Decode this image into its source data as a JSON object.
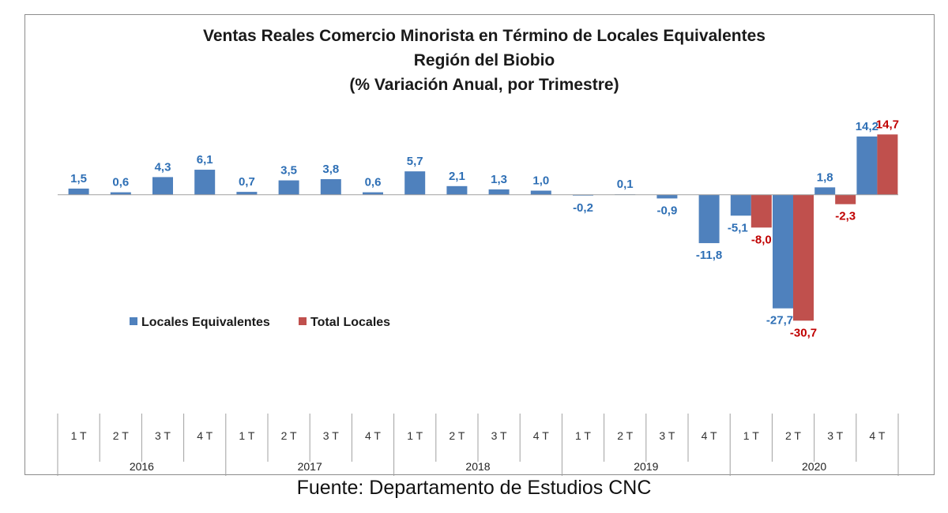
{
  "chart_data": {
    "type": "bar",
    "title_lines": [
      "Ventas Reales Comercio Minorista  en Término de Locales Equivalentes",
      "Región del Biobio",
      "(% Variación Anual, por Trimestre)"
    ],
    "categories": [
      "1 T",
      "2 T",
      "3 T",
      "4 T",
      "1 T",
      "2 T",
      "3 T",
      "4 T",
      "1 T",
      "2 T",
      "3 T",
      "4 T",
      "1 T",
      "2 T",
      "3 T",
      "4 T",
      "1 T",
      "2 T",
      "3 T",
      "4 T"
    ],
    "groups": [
      {
        "label": "2016",
        "count": 4
      },
      {
        "label": "2017",
        "count": 4
      },
      {
        "label": "2018",
        "count": 4
      },
      {
        "label": "2019",
        "count": 4
      },
      {
        "label": "2020",
        "count": 4
      }
    ],
    "series": [
      {
        "name": "Locales Equivalentes",
        "color": "#4f81bd",
        "label_color": "#2e6fb5",
        "values": [
          1.5,
          0.6,
          4.3,
          6.1,
          0.7,
          3.5,
          3.8,
          0.6,
          5.7,
          2.1,
          1.3,
          1.0,
          -0.2,
          0.1,
          -0.9,
          -11.8,
          -5.1,
          -27.7,
          1.8,
          14.2
        ],
        "labels": [
          "1,5",
          "0,6",
          "4,3",
          "6,1",
          "0,7",
          "3,5",
          "3,8",
          "0,6",
          "5,7",
          "2,1",
          "1,3",
          "1,0",
          "-0,2",
          "0,1",
          "-0,9",
          "-11,8",
          "-5,1",
          "-27,7",
          "1,8",
          "14,2"
        ]
      },
      {
        "name": "Total Locales",
        "color": "#c0504d",
        "label_color": "#c00000",
        "values": [
          null,
          null,
          null,
          null,
          null,
          null,
          null,
          null,
          null,
          null,
          null,
          null,
          null,
          null,
          null,
          null,
          -8.0,
          -30.7,
          -2.3,
          14.7
        ],
        "labels": [
          "",
          "",
          "",
          "",
          "",
          "",
          "",
          "",
          "",
          "",
          "",
          "",
          "",
          "",
          "",
          "",
          "-8,0",
          "-30,7",
          "-2,3",
          "14,7"
        ]
      }
    ],
    "ylim": [
      -52,
      19
    ],
    "grid": false,
    "legend_position": "center-left",
    "source": "Fuente: Departamento de Estudios CNC"
  }
}
